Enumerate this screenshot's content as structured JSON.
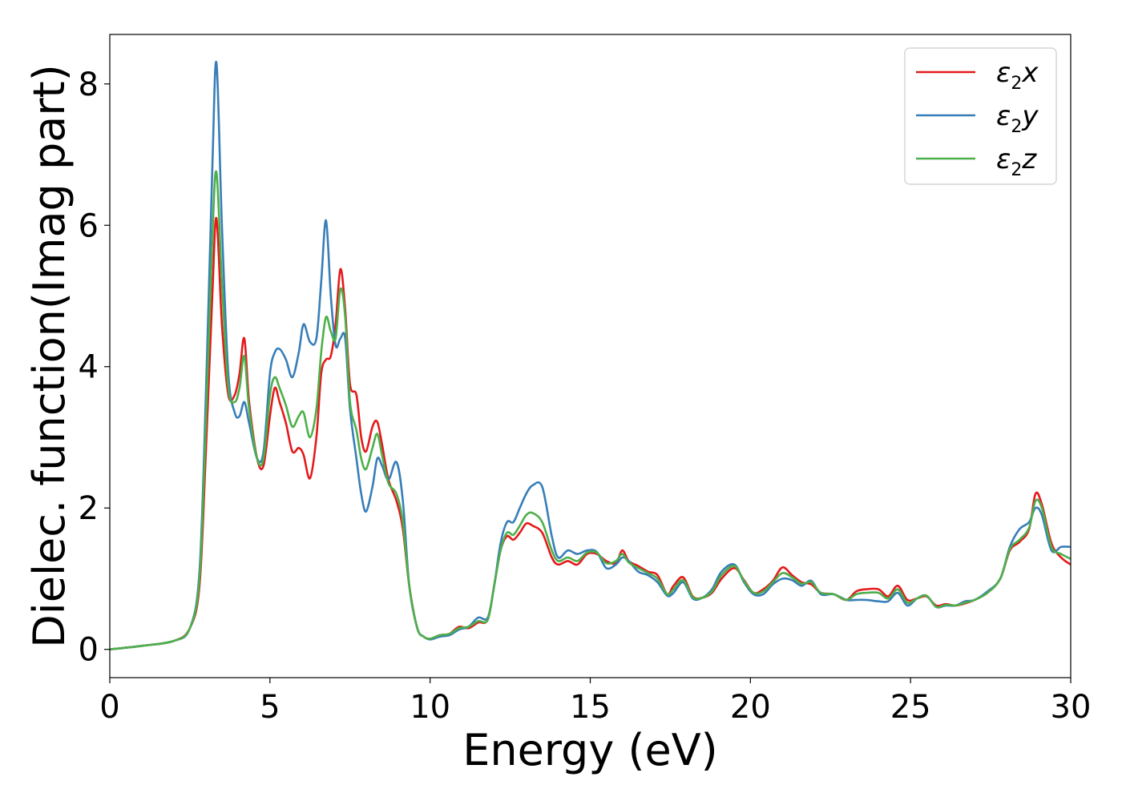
{
  "chart_data": {
    "type": "line",
    "title": "",
    "xlabel": "Energy (eV)",
    "ylabel": "Dielec. function(Imag part)",
    "xlim": [
      0,
      30
    ],
    "ylim": [
      -0.4,
      8.7
    ],
    "xticks": [
      0,
      5,
      10,
      15,
      20,
      25,
      30
    ],
    "yticks": [
      0,
      2,
      4,
      6,
      8
    ],
    "grid": false,
    "legend_position": "top-right",
    "series": [
      {
        "name": "ε2x",
        "label_main": "ε",
        "label_sub": "2",
        "label_tail": "x",
        "color": "#e41a1c",
        "x": [
          0,
          1,
          2,
          2.5,
          2.8,
          3.0,
          3.2,
          3.33,
          3.5,
          3.7,
          3.9,
          4.05,
          4.2,
          4.35,
          4.6,
          4.8,
          5.0,
          5.15,
          5.3,
          5.5,
          5.7,
          5.9,
          6.05,
          6.25,
          6.45,
          6.6,
          6.75,
          6.9,
          7.05,
          7.2,
          7.35,
          7.5,
          7.7,
          7.85,
          8.0,
          8.2,
          8.35,
          8.5,
          8.7,
          8.95,
          9.15,
          9.35,
          9.6,
          9.8,
          10.0,
          10.3,
          10.6,
          10.9,
          11.2,
          11.5,
          11.8,
          12.0,
          12.2,
          12.4,
          12.6,
          12.8,
          13.0,
          13.2,
          13.5,
          13.8,
          14.0,
          14.3,
          14.6,
          14.9,
          15.2,
          15.5,
          15.8,
          16.0,
          16.2,
          16.5,
          16.8,
          17.1,
          17.4,
          17.6,
          17.9,
          18.2,
          18.5,
          18.8,
          19.1,
          19.5,
          19.8,
          20.1,
          20.4,
          20.7,
          21.0,
          21.3,
          21.6,
          21.9,
          22.2,
          22.6,
          23.0,
          23.3,
          23.6,
          24.0,
          24.3,
          24.6,
          24.9,
          25.2,
          25.5,
          25.8,
          26.1,
          26.4,
          26.7,
          27.0,
          27.4,
          27.8,
          28.1,
          28.4,
          28.7,
          28.9,
          29.1,
          29.4,
          29.7,
          30.0
        ],
        "y": [
          0,
          0.05,
          0.12,
          0.3,
          0.9,
          2.8,
          5.0,
          6.1,
          4.6,
          3.6,
          3.6,
          3.9,
          4.4,
          3.5,
          2.7,
          2.6,
          3.3,
          3.7,
          3.5,
          3.2,
          2.8,
          2.85,
          2.75,
          2.42,
          3.0,
          3.9,
          4.1,
          4.15,
          4.6,
          5.38,
          4.8,
          3.75,
          3.6,
          3.0,
          2.8,
          3.15,
          3.22,
          2.9,
          2.4,
          2.1,
          1.7,
          0.9,
          0.3,
          0.18,
          0.15,
          0.2,
          0.22,
          0.32,
          0.3,
          0.38,
          0.42,
          0.9,
          1.4,
          1.6,
          1.55,
          1.65,
          1.78,
          1.75,
          1.65,
          1.3,
          1.2,
          1.25,
          1.2,
          1.35,
          1.35,
          1.25,
          1.22,
          1.4,
          1.25,
          1.18,
          1.1,
          1.05,
          0.78,
          0.9,
          1.02,
          0.75,
          0.73,
          0.8,
          1.0,
          1.15,
          0.98,
          0.8,
          0.85,
          0.97,
          1.16,
          1.05,
          0.95,
          0.92,
          0.8,
          0.78,
          0.7,
          0.82,
          0.85,
          0.85,
          0.75,
          0.9,
          0.7,
          0.72,
          0.75,
          0.62,
          0.64,
          0.62,
          0.65,
          0.7,
          0.8,
          1.0,
          1.4,
          1.52,
          1.7,
          2.2,
          2.05,
          1.5,
          1.3,
          1.2
        ]
      },
      {
        "name": "ε2y",
        "label_main": "ε",
        "label_sub": "2",
        "label_tail": "y",
        "color": "#377eb8",
        "x": [
          0,
          1,
          2,
          2.5,
          2.8,
          3.0,
          3.2,
          3.33,
          3.5,
          3.7,
          3.9,
          4.05,
          4.2,
          4.35,
          4.6,
          4.8,
          5.0,
          5.15,
          5.3,
          5.5,
          5.7,
          5.9,
          6.05,
          6.25,
          6.45,
          6.6,
          6.75,
          6.9,
          7.05,
          7.2,
          7.35,
          7.5,
          7.7,
          7.85,
          8.0,
          8.2,
          8.35,
          8.5,
          8.7,
          8.95,
          9.15,
          9.35,
          9.6,
          9.8,
          10.0,
          10.3,
          10.6,
          10.9,
          11.2,
          11.5,
          11.8,
          12.0,
          12.2,
          12.4,
          12.6,
          12.8,
          13.0,
          13.2,
          13.5,
          13.8,
          14.0,
          14.3,
          14.6,
          14.9,
          15.2,
          15.5,
          15.8,
          16.0,
          16.2,
          16.5,
          16.8,
          17.1,
          17.4,
          17.6,
          17.9,
          18.2,
          18.5,
          18.8,
          19.1,
          19.5,
          19.8,
          20.1,
          20.4,
          20.7,
          21.0,
          21.3,
          21.6,
          21.9,
          22.2,
          22.6,
          23.0,
          23.3,
          23.6,
          24.0,
          24.3,
          24.6,
          24.9,
          25.2,
          25.5,
          25.8,
          26.1,
          26.4,
          26.7,
          27.0,
          27.4,
          27.8,
          28.1,
          28.4,
          28.7,
          28.9,
          29.1,
          29.4,
          29.7,
          30.0
        ],
        "y": [
          0,
          0.05,
          0.12,
          0.3,
          1.1,
          3.6,
          6.8,
          8.3,
          6.0,
          3.9,
          3.35,
          3.3,
          3.5,
          3.2,
          2.7,
          2.8,
          3.9,
          4.2,
          4.25,
          4.1,
          3.85,
          4.2,
          4.6,
          4.35,
          4.4,
          5.2,
          6.07,
          5.0,
          4.3,
          4.4,
          4.4,
          3.4,
          2.7,
          2.2,
          1.95,
          2.3,
          2.7,
          2.6,
          2.4,
          2.65,
          2.1,
          0.9,
          0.3,
          0.18,
          0.14,
          0.18,
          0.2,
          0.28,
          0.32,
          0.45,
          0.45,
          0.9,
          1.5,
          1.8,
          1.8,
          2.0,
          2.2,
          2.32,
          2.3,
          1.6,
          1.3,
          1.4,
          1.35,
          1.4,
          1.38,
          1.15,
          1.2,
          1.3,
          1.25,
          1.1,
          1.05,
          0.95,
          0.76,
          0.8,
          0.95,
          0.72,
          0.73,
          0.85,
          1.1,
          1.2,
          0.95,
          0.78,
          0.78,
          0.92,
          1.0,
          0.98,
          0.9,
          0.97,
          0.78,
          0.78,
          0.7,
          0.7,
          0.7,
          0.68,
          0.68,
          0.8,
          0.62,
          0.72,
          0.76,
          0.6,
          0.62,
          0.62,
          0.68,
          0.7,
          0.82,
          1.0,
          1.45,
          1.7,
          1.8,
          2.0,
          1.9,
          1.4,
          1.45,
          1.45
        ]
      },
      {
        "name": "ε2z",
        "label_main": "ε",
        "label_sub": "2",
        "label_tail": "z",
        "color": "#4daf4a",
        "x": [
          0,
          1,
          2,
          2.5,
          2.8,
          3.0,
          3.2,
          3.33,
          3.5,
          3.7,
          3.9,
          4.05,
          4.2,
          4.35,
          4.6,
          4.8,
          5.0,
          5.15,
          5.3,
          5.5,
          5.7,
          5.9,
          6.05,
          6.25,
          6.45,
          6.6,
          6.75,
          6.9,
          7.05,
          7.2,
          7.35,
          7.5,
          7.7,
          7.85,
          8.0,
          8.2,
          8.35,
          8.5,
          8.7,
          8.95,
          9.15,
          9.35,
          9.6,
          9.8,
          10.0,
          10.3,
          10.6,
          10.9,
          11.2,
          11.5,
          11.8,
          12.0,
          12.2,
          12.4,
          12.6,
          12.8,
          13.0,
          13.2,
          13.5,
          13.8,
          14.0,
          14.3,
          14.6,
          14.9,
          15.2,
          15.5,
          15.8,
          16.0,
          16.2,
          16.5,
          16.8,
          17.1,
          17.4,
          17.6,
          17.9,
          18.2,
          18.5,
          18.8,
          19.1,
          19.5,
          19.8,
          20.1,
          20.4,
          20.7,
          21.0,
          21.3,
          21.6,
          21.9,
          22.2,
          22.6,
          23.0,
          23.3,
          23.6,
          24.0,
          24.3,
          24.6,
          24.9,
          25.2,
          25.5,
          25.8,
          26.1,
          26.4,
          26.7,
          27.0,
          27.4,
          27.8,
          28.1,
          28.4,
          28.7,
          28.9,
          29.1,
          29.4,
          29.7,
          30.0
        ],
        "y": [
          0,
          0.05,
          0.12,
          0.3,
          1.0,
          3.2,
          5.8,
          6.75,
          5.2,
          3.7,
          3.5,
          3.7,
          4.15,
          3.4,
          2.7,
          2.7,
          3.6,
          3.85,
          3.7,
          3.45,
          3.15,
          3.3,
          3.35,
          3.0,
          3.4,
          4.2,
          4.7,
          4.5,
          4.4,
          5.1,
          4.7,
          3.5,
          3.1,
          2.7,
          2.55,
          2.85,
          3.05,
          2.75,
          2.35,
          2.2,
          1.8,
          0.9,
          0.3,
          0.18,
          0.15,
          0.2,
          0.22,
          0.3,
          0.32,
          0.4,
          0.42,
          0.9,
          1.4,
          1.65,
          1.62,
          1.75,
          1.9,
          1.93,
          1.8,
          1.4,
          1.25,
          1.3,
          1.25,
          1.37,
          1.37,
          1.22,
          1.25,
          1.35,
          1.23,
          1.15,
          1.08,
          1.0,
          0.78,
          0.85,
          0.98,
          0.74,
          0.73,
          0.82,
          1.05,
          1.18,
          0.97,
          0.8,
          0.82,
          0.95,
          1.08,
          1.02,
          0.93,
          0.95,
          0.8,
          0.78,
          0.7,
          0.78,
          0.8,
          0.8,
          0.72,
          0.85,
          0.66,
          0.72,
          0.76,
          0.6,
          0.63,
          0.62,
          0.66,
          0.7,
          0.8,
          1.0,
          1.42,
          1.55,
          1.72,
          2.1,
          2.0,
          1.45,
          1.35,
          1.28
        ]
      }
    ]
  }
}
